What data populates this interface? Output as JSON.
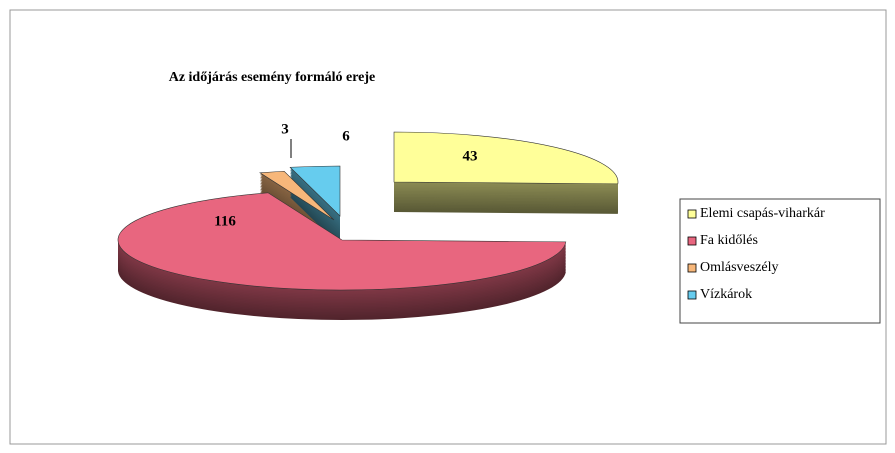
{
  "chart_data": {
    "type": "pie",
    "title": "Az időjárás esemény formáló ereje",
    "categories": [
      "Elemi csapás-viharkár",
      "Fa kidőlés",
      "Omlásveszély",
      "Vízkárok"
    ],
    "values": [
      43,
      116,
      3,
      6
    ],
    "colors": [
      "#ffff99",
      "#e8667f",
      "#f7b77a",
      "#66ccee"
    ]
  }
}
